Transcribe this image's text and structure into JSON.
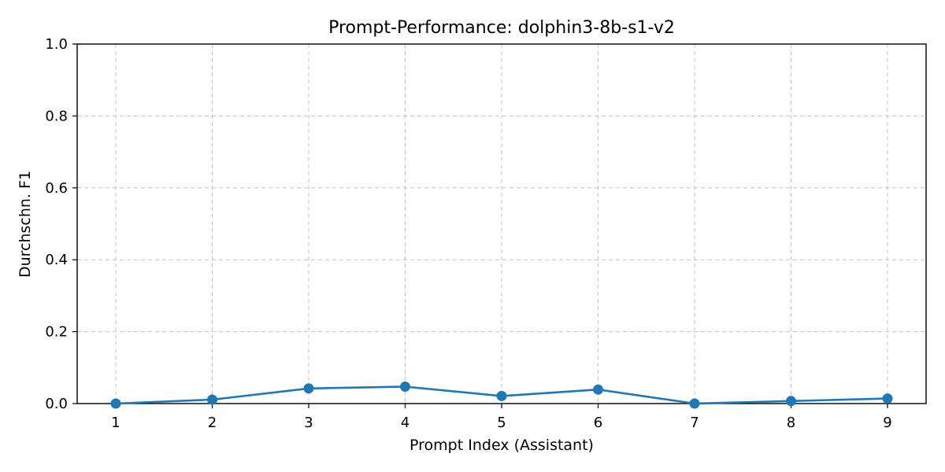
{
  "chart_data": {
    "type": "line",
    "title": "Prompt-Performance: dolphin3-8b-s1-v2",
    "xlabel": "Prompt Index (Assistant)",
    "ylabel": "Durchschn. F1",
    "x": [
      1,
      2,
      3,
      4,
      5,
      6,
      7,
      8,
      9
    ],
    "x_ticks": [
      "1",
      "2",
      "3",
      "4",
      "5",
      "6",
      "7",
      "8",
      "9"
    ],
    "xlim": [
      0.6,
      9.4
    ],
    "ylim": [
      0.0,
      1.0
    ],
    "y_ticks": [
      "0.0",
      "0.2",
      "0.4",
      "0.6",
      "0.8",
      "1.0"
    ],
    "grid": true,
    "series": [
      {
        "values": [
          0.0,
          0.011,
          0.042,
          0.047,
          0.021,
          0.039,
          0.0,
          0.007,
          0.014
        ],
        "color": "#1f77b4",
        "marker": "circle"
      }
    ]
  }
}
